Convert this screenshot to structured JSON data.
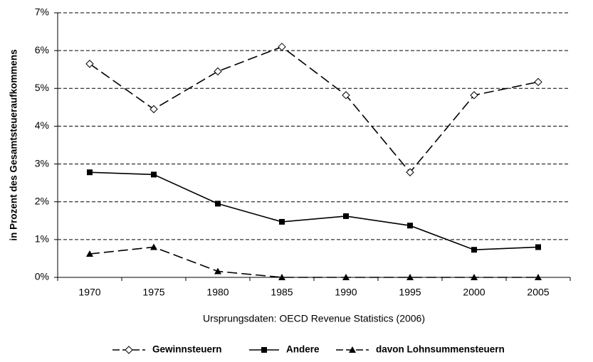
{
  "chart_data": {
    "type": "line",
    "y_axis_label": "in Prozent des Gesamtsteueraufkommens",
    "note": "Ursprungsdaten: OECD Revenue Statistics (2006)",
    "categories": [
      "1970",
      "1975",
      "1980",
      "1985",
      "1990",
      "1995",
      "2000",
      "2005"
    ],
    "series": [
      {
        "name": "Gewinnsteuern",
        "color": "#000000",
        "marker": "diamond",
        "dashed": true,
        "values": [
          5.65,
          4.45,
          5.45,
          6.1,
          4.82,
          2.78,
          4.82,
          5.17
        ]
      },
      {
        "name": "Andere",
        "color": "#000000",
        "marker": "square",
        "dashed": false,
        "values": [
          2.78,
          2.72,
          1.95,
          1.47,
          1.62,
          1.37,
          0.73,
          0.8
        ]
      },
      {
        "name": "davon Lohnsummensteuern",
        "color": "#000000",
        "marker": "triangle",
        "dashed": true,
        "values": [
          0.62,
          0.8,
          0.16,
          0,
          0,
          0,
          0,
          0
        ]
      }
    ],
    "ylim": [
      0,
      7
    ],
    "yticks": [
      {
        "value": 0,
        "label": "0%"
      },
      {
        "value": 1,
        "label": "1%"
      },
      {
        "value": 2,
        "label": "2%"
      },
      {
        "value": 3,
        "label": "3%"
      },
      {
        "value": 4,
        "label": "4%"
      },
      {
        "value": 5,
        "label": "5%"
      },
      {
        "value": 6,
        "label": "6%"
      },
      {
        "value": 7,
        "label": "7%"
      }
    ],
    "grid": true,
    "legend": "bottom"
  }
}
